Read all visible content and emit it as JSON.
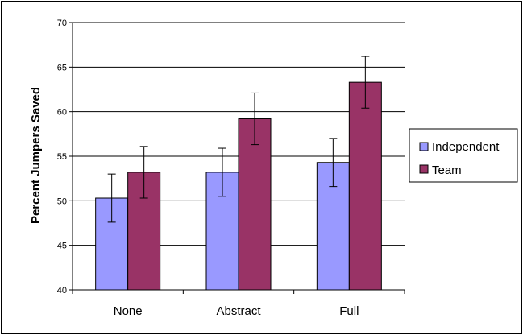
{
  "chart_data": {
    "type": "bar",
    "title": "",
    "xlabel": "",
    "ylabel": "Percent Jumpers Saved",
    "ylim": [
      40,
      70
    ],
    "yticks": [
      40,
      45,
      50,
      55,
      60,
      65,
      70
    ],
    "grid": true,
    "legend_position": "right",
    "categories": [
      "None",
      "Abstract",
      "Full"
    ],
    "series": [
      {
        "name": "Independent",
        "color": "#9999ff",
        "values": [
          50.3,
          53.2,
          54.3
        ],
        "error": [
          2.7,
          2.7,
          2.7
        ]
      },
      {
        "name": "Team",
        "color": "#993366",
        "values": [
          53.2,
          59.2,
          63.3
        ],
        "error": [
          2.9,
          2.9,
          2.9
        ]
      }
    ]
  }
}
